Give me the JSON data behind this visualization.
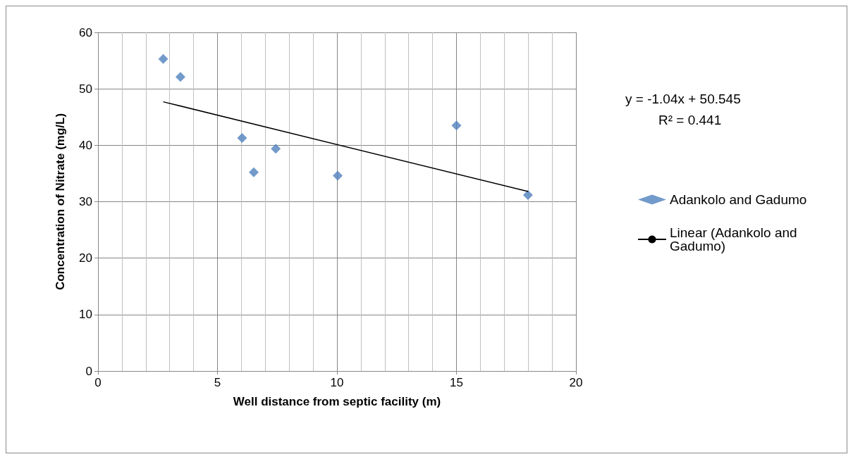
{
  "chart_data": {
    "type": "scatter",
    "xlabel": "Well distance from septic facility (m)",
    "ylabel": "Concentration of Nitrate (mg/L)",
    "xlim": [
      0,
      20
    ],
    "xticks": [
      0,
      5,
      10,
      15,
      20
    ],
    "ylim": [
      0,
      60
    ],
    "yticks": [
      0,
      10,
      20,
      30,
      40,
      50,
      60
    ],
    "grid": true,
    "legend": "right",
    "marker": "diamond",
    "annotations": [
      "y = -1.04x + 50.545",
      "R² = 0.441"
    ],
    "series": [
      {
        "name": "Adankolo and Gadumo",
        "color": "#4f81bd",
        "x": [
          2.73,
          3.45,
          6.03,
          6.52,
          7.44,
          10.03,
          15.0,
          17.99
        ],
        "values": [
          55.3,
          52.1,
          41.3,
          35.2,
          39.4,
          34.6,
          43.5,
          31.2
        ]
      },
      {
        "name": "Linear (Adankolo and Gadumo)",
        "type": "line",
        "color": "#000000",
        "marker": "none",
        "x": [
          2.73,
          18
        ],
        "values": [
          47.7,
          31.8
        ]
      }
    ]
  }
}
